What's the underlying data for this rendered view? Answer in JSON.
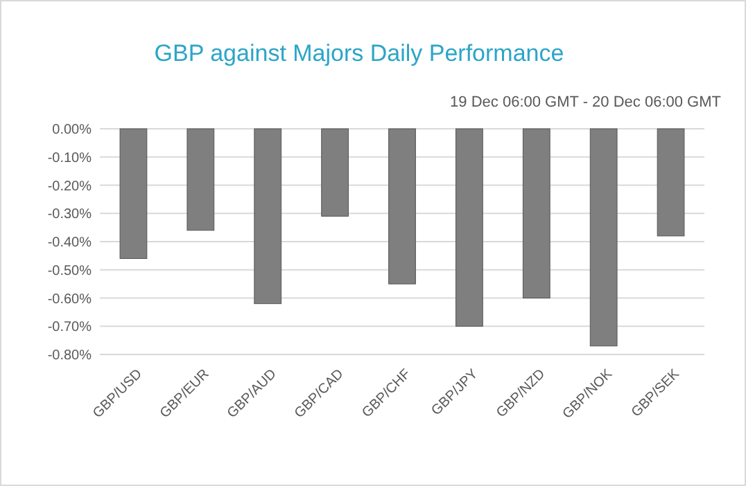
{
  "chart_data": {
    "type": "bar",
    "title": "GBP against Majors Daily Performance",
    "subtitle": "19 Dec 06:00 GMT - 20 Dec 06:00 GMT",
    "categories": [
      "GBP/USD",
      "GBP/EUR",
      "GBP/AUD",
      "GBP/CAD",
      "GBP/CHF",
      "GBP/JPY",
      "GBP/NZD",
      "GBP/NOK",
      "GBP/SEK"
    ],
    "values": [
      -0.46,
      -0.36,
      -0.62,
      -0.31,
      -0.55,
      -0.7,
      -0.6,
      -0.77,
      -0.38
    ],
    "color": "#7f7f7f",
    "ylim": [
      -0.8,
      0
    ],
    "yticks": [
      {
        "value": 0,
        "label": "0.00%"
      },
      {
        "value": -0.1,
        "label": "-0.10%"
      },
      {
        "value": -0.2,
        "label": "-0.20%"
      },
      {
        "value": -0.3,
        "label": "-0.30%"
      },
      {
        "value": -0.4,
        "label": "-0.40%"
      },
      {
        "value": -0.5,
        "label": "-0.50%"
      },
      {
        "value": -0.6,
        "label": "-0.60%"
      },
      {
        "value": -0.7,
        "label": "-0.70%"
      },
      {
        "value": -0.8,
        "label": "-0.80%"
      }
    ],
    "grid": true
  }
}
